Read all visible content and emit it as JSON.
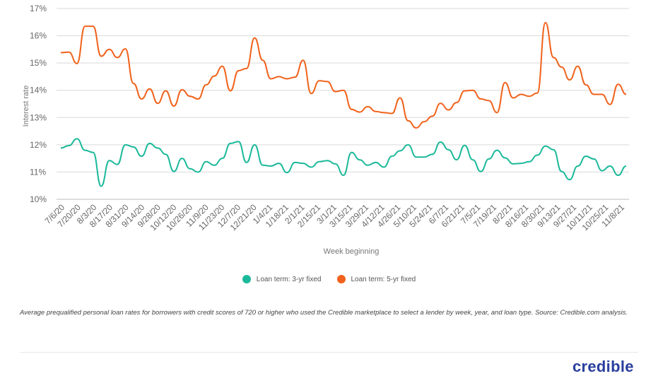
{
  "chart_data": {
    "type": "line",
    "ylabel": "Interest rate",
    "xlabel": "Week beginning",
    "ylim": [
      10,
      17
    ],
    "y_ticks": [
      "10%",
      "11%",
      "12%",
      "13%",
      "14%",
      "15%",
      "16%",
      "17%"
    ],
    "tick_labels": [
      "7/6/20",
      "7/20/20",
      "8/3/20",
      "8/17/20",
      "8/31/20",
      "9/14/20",
      "9/28/20",
      "10/12/20",
      "10/26/20",
      "11/9/20",
      "11/23/20",
      "12/7/20",
      "12/21/20",
      "1/4/21",
      "1/18/21",
      "2/1/21",
      "2/15/21",
      "3/1/21",
      "3/15/21",
      "3/29/21",
      "4/12/21",
      "4/26/21",
      "5/10/21",
      "5/24/21",
      "6/7/21",
      "6/21/21",
      "7/5/21",
      "7/19/21",
      "8/2/21",
      "8/16/21",
      "8/30/21",
      "9/13/21",
      "9/27/21",
      "10/11/21",
      "10/25/21",
      "11/8/21"
    ],
    "series": [
      {
        "name": "Loan term: 3-yr fixed",
        "color": "#1bb99a",
        "values": [
          11.88,
          11.97,
          12.22,
          11.8,
          11.72,
          10.48,
          11.42,
          11.28,
          12.0,
          11.92,
          11.58,
          12.05,
          11.88,
          11.65,
          11.02,
          11.5,
          11.12,
          11.0,
          11.38,
          11.25,
          11.5,
          12.05,
          12.12,
          11.35,
          12.0,
          11.25,
          11.22,
          11.32,
          10.98,
          11.35,
          11.32,
          11.18,
          11.38,
          11.42,
          11.3,
          10.88,
          11.72,
          11.45,
          11.25,
          11.35,
          11.18,
          11.58,
          11.78,
          12.0,
          11.55,
          11.55,
          11.65,
          12.1,
          11.82,
          11.45,
          11.98,
          11.45,
          11.02,
          11.48,
          11.8,
          11.52,
          11.3,
          11.32,
          11.38,
          11.62,
          11.95,
          11.82,
          11.02,
          10.72,
          11.22,
          11.58,
          11.48,
          11.05,
          11.22,
          10.88,
          11.22
        ]
      },
      {
        "name": "Loan term: 5-yr fixed",
        "color": "#f0621b",
        "values": [
          15.38,
          15.4,
          14.98,
          16.35,
          16.35,
          15.25,
          15.5,
          15.2,
          15.52,
          14.25,
          13.68,
          14.05,
          13.52,
          13.98,
          13.42,
          14.02,
          13.78,
          13.68,
          14.2,
          14.52,
          14.88,
          13.98,
          14.72,
          14.8,
          15.92,
          15.1,
          14.42,
          14.5,
          14.42,
          14.48,
          15.1,
          13.88,
          14.35,
          14.32,
          13.95,
          14.0,
          13.3,
          13.2,
          13.4,
          13.22,
          13.18,
          13.15,
          13.72,
          12.88,
          12.62,
          12.85,
          13.05,
          13.52,
          13.28,
          13.55,
          13.98,
          14.0,
          13.68,
          13.62,
          13.18,
          14.28,
          13.72,
          13.85,
          13.78,
          13.9,
          16.48,
          15.2,
          14.85,
          14.38,
          14.88,
          14.2,
          13.85,
          13.85,
          13.48,
          14.22,
          13.85
        ]
      }
    ]
  },
  "legend": {
    "three_year": "Loan term: 3-yr fixed",
    "five_year": "Loan term: 5-yr fixed"
  },
  "caption": "Average prequalified personal loan rates for borrowers with credit scores of 720 or higher who used the Credible marketplace to select a lender by week, year, and loan type. Source: Credible.com analysis.",
  "logo_text": "credible",
  "colors": {
    "three_year": "#1bb99a",
    "five_year": "#f0621b",
    "grid": "#d9d9d9"
  }
}
